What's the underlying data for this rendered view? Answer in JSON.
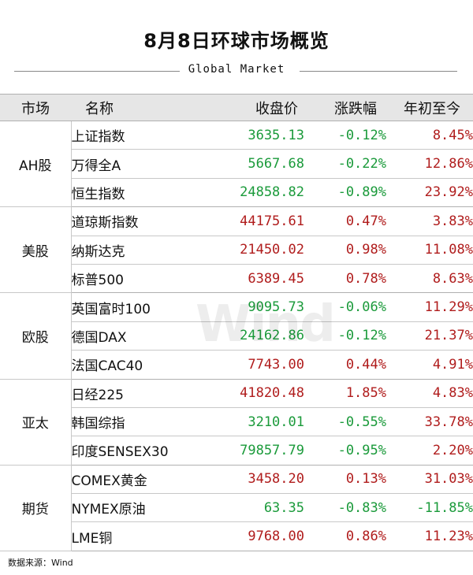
{
  "title": "8月8日环球市场概览",
  "subtitle": "Global Market",
  "watermark": "Wind",
  "headers": {
    "market": "市场",
    "name": "名称",
    "close": "收盘价",
    "change": "涨跌幅",
    "ytd": "年初至今"
  },
  "groups": [
    {
      "market": "AH股",
      "rows": [
        {
          "name": "上证指数",
          "close": "3635.13",
          "change": "-0.12%",
          "ytd": "8.45%",
          "close_color": "green",
          "change_color": "green",
          "ytd_color": "red"
        },
        {
          "name": "万得全A",
          "close": "5667.68",
          "change": "-0.22%",
          "ytd": "12.86%",
          "close_color": "green",
          "change_color": "green",
          "ytd_color": "red"
        },
        {
          "name": "恒生指数",
          "close": "24858.82",
          "change": "-0.89%",
          "ytd": "23.92%",
          "close_color": "green",
          "change_color": "green",
          "ytd_color": "red"
        }
      ]
    },
    {
      "market": "美股",
      "rows": [
        {
          "name": "道琼斯指数",
          "close": "44175.61",
          "change": "0.47%",
          "ytd": "3.83%",
          "close_color": "red",
          "change_color": "red",
          "ytd_color": "red"
        },
        {
          "name": "纳斯达克",
          "close": "21450.02",
          "change": "0.98%",
          "ytd": "11.08%",
          "close_color": "red",
          "change_color": "red",
          "ytd_color": "red"
        },
        {
          "name": "标普500",
          "close": "6389.45",
          "change": "0.78%",
          "ytd": "8.63%",
          "close_color": "red",
          "change_color": "red",
          "ytd_color": "red"
        }
      ]
    },
    {
      "market": "欧股",
      "rows": [
        {
          "name": "英国富时100",
          "close": "9095.73",
          "change": "-0.06%",
          "ytd": "11.29%",
          "close_color": "green",
          "change_color": "green",
          "ytd_color": "red"
        },
        {
          "name": "德国DAX",
          "close": "24162.86",
          "change": "-0.12%",
          "ytd": "21.37%",
          "close_color": "green",
          "change_color": "green",
          "ytd_color": "red"
        },
        {
          "name": "法国CAC40",
          "close": "7743.00",
          "change": "0.44%",
          "ytd": "4.91%",
          "close_color": "red",
          "change_color": "red",
          "ytd_color": "red"
        }
      ]
    },
    {
      "market": "亚太",
      "rows": [
        {
          "name": "日经225",
          "close": "41820.48",
          "change": "1.85%",
          "ytd": "4.83%",
          "close_color": "red",
          "change_color": "red",
          "ytd_color": "red"
        },
        {
          "name": "韩国综指",
          "close": "3210.01",
          "change": "-0.55%",
          "ytd": "33.78%",
          "close_color": "green",
          "change_color": "green",
          "ytd_color": "red"
        },
        {
          "name": "印度SENSEX30",
          "close": "79857.79",
          "change": "-0.95%",
          "ytd": "2.20%",
          "close_color": "green",
          "change_color": "green",
          "ytd_color": "red"
        }
      ]
    },
    {
      "market": "期货",
      "rows": [
        {
          "name": "COMEX黄金",
          "close": "3458.20",
          "change": "0.13%",
          "ytd": "31.03%",
          "close_color": "red",
          "change_color": "red",
          "ytd_color": "red"
        },
        {
          "name": "NYMEX原油",
          "close": "63.35",
          "change": "-0.83%",
          "ytd": "-11.85%",
          "close_color": "green",
          "change_color": "green",
          "ytd_color": "green"
        },
        {
          "name": "LME铜",
          "close": "9768.00",
          "change": "0.86%",
          "ytd": "11.23%",
          "close_color": "red",
          "change_color": "red",
          "ytd_color": "red"
        }
      ]
    }
  ],
  "source": "数据来源：Wind",
  "colors": {
    "up": "#b01c1c",
    "down": "#1a9a3a",
    "header_bg": "#e6e6e6"
  }
}
